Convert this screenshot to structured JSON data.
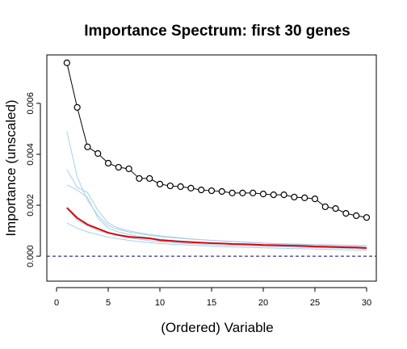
{
  "chart_data": {
    "type": "line",
    "title": "Importance Spectrum: first 30 genes",
    "xlabel": "(Ordered) Variable",
    "ylabel": "Importance (unscaled)",
    "x": [
      1,
      2,
      3,
      4,
      5,
      6,
      7,
      8,
      9,
      10,
      11,
      12,
      13,
      14,
      15,
      16,
      17,
      18,
      19,
      20,
      21,
      22,
      23,
      24,
      25,
      26,
      27,
      28,
      29,
      30
    ],
    "xlim": [
      -0.94,
      30.94
    ],
    "xticks": [
      0,
      5,
      10,
      15,
      20,
      25,
      30
    ],
    "ylim": [
      -0.00098,
      0.0079
    ],
    "yticks": [
      {
        "value": 0,
        "label": "0.000"
      },
      {
        "value": 0.002,
        "label": "0.002"
      },
      {
        "value": 0.004,
        "label": "0.004"
      },
      {
        "value": 0.006,
        "label": "0.006"
      }
    ],
    "hline": 0,
    "hline_color": "#00008b",
    "series": [
      {
        "color": "#a6d0f0",
        "width": 1,
        "values": [
          0.0049,
          0.0031,
          0.0022,
          0.0016,
          0.0012,
          0.00105,
          0.00095,
          0.00088,
          0.00082,
          0.00077,
          0.00073,
          0.0007,
          0.00067,
          0.00064,
          0.00062,
          0.0006,
          0.00058,
          0.00056,
          0.00054,
          0.00052,
          0.0005,
          0.00049,
          0.00048,
          0.00047,
          0.00046,
          0.00045,
          0.00044,
          0.00043,
          0.00042,
          0.00041
        ]
      },
      {
        "color": "#a6d0f0",
        "width": 1,
        "values": [
          0.0034,
          0.0027,
          0.0025,
          0.0018,
          0.0013,
          0.0011,
          0.001,
          0.00092,
          0.00085,
          0.0008,
          0.00076,
          0.00072,
          0.00068,
          0.00065,
          0.00062,
          0.00059,
          0.00057,
          0.00055,
          0.00053,
          0.00051,
          0.00049,
          0.00047,
          0.00046,
          0.00045,
          0.00044,
          0.00043,
          0.00042,
          0.00041,
          0.0004,
          0.00039
        ]
      },
      {
        "color": "#a6d0f0",
        "width": 1,
        "values": [
          0.0028,
          0.0026,
          0.0023,
          0.0015,
          0.0011,
          0.00095,
          0.00085,
          0.00078,
          0.00072,
          0.00067,
          0.00063,
          0.0006,
          0.00057,
          0.00054,
          0.00052,
          0.0005,
          0.00048,
          0.00046,
          0.00044,
          0.00042,
          0.00041,
          0.0004,
          0.00039,
          0.00038,
          0.00037,
          0.00036,
          0.00035,
          0.00034,
          0.00033,
          0.00032
        ]
      },
      {
        "color": "#a6d0f0",
        "width": 1,
        "values": [
          0.0013,
          0.0011,
          0.00095,
          0.00085,
          0.00075,
          0.00068,
          0.00062,
          0.00057,
          0.00053,
          0.0005,
          0.00047,
          0.00045,
          0.00043,
          0.00041,
          0.00039,
          0.00037,
          0.00036,
          0.00035,
          0.00034,
          0.00033,
          0.00032,
          0.00031,
          0.0003,
          0.00029,
          0.00028,
          0.00027,
          0.00026,
          0.00025,
          0.00024,
          0.00023
        ]
      },
      {
        "color": "#a6d0f0",
        "width": 1,
        "values": [
          0.0019,
          0.0014,
          0.0012,
          0.001,
          0.0009,
          0.0008,
          0.00072,
          0.00066,
          0.00061,
          0.00057,
          0.00054,
          0.00051,
          0.00049,
          0.00047,
          0.00045,
          0.00043,
          0.00042,
          0.00041,
          0.0004,
          0.00039,
          0.00038,
          0.00037,
          0.00036,
          0.00035,
          0.00034,
          0.00033,
          0.00032,
          0.00031,
          0.0003,
          0.00029
        ]
      },
      {
        "color": "#e00000",
        "width": 2,
        "values": [
          0.0019,
          0.0015,
          0.00124,
          0.00108,
          0.00092,
          0.00083,
          0.00076,
          0.00073,
          0.0007,
          0.00063,
          0.0006,
          0.00057,
          0.00055,
          0.00053,
          0.00051,
          0.0005,
          0.00048,
          0.00047,
          0.00046,
          0.00044,
          0.00043,
          0.00042,
          0.00041,
          0.0004,
          0.00038,
          0.00037,
          0.00036,
          0.00035,
          0.00034,
          0.00032
        ]
      },
      {
        "color": "#000000",
        "width": 1,
        "marker": "circle",
        "values": [
          0.00759,
          0.00584,
          0.00429,
          0.00403,
          0.00365,
          0.00349,
          0.00343,
          0.00305,
          0.00305,
          0.00283,
          0.00276,
          0.00273,
          0.00267,
          0.0026,
          0.00257,
          0.00254,
          0.00248,
          0.00248,
          0.00248,
          0.00244,
          0.00241,
          0.00241,
          0.00232,
          0.00229,
          0.00225,
          0.00194,
          0.00187,
          0.00168,
          0.00159,
          0.00152
        ]
      }
    ]
  }
}
